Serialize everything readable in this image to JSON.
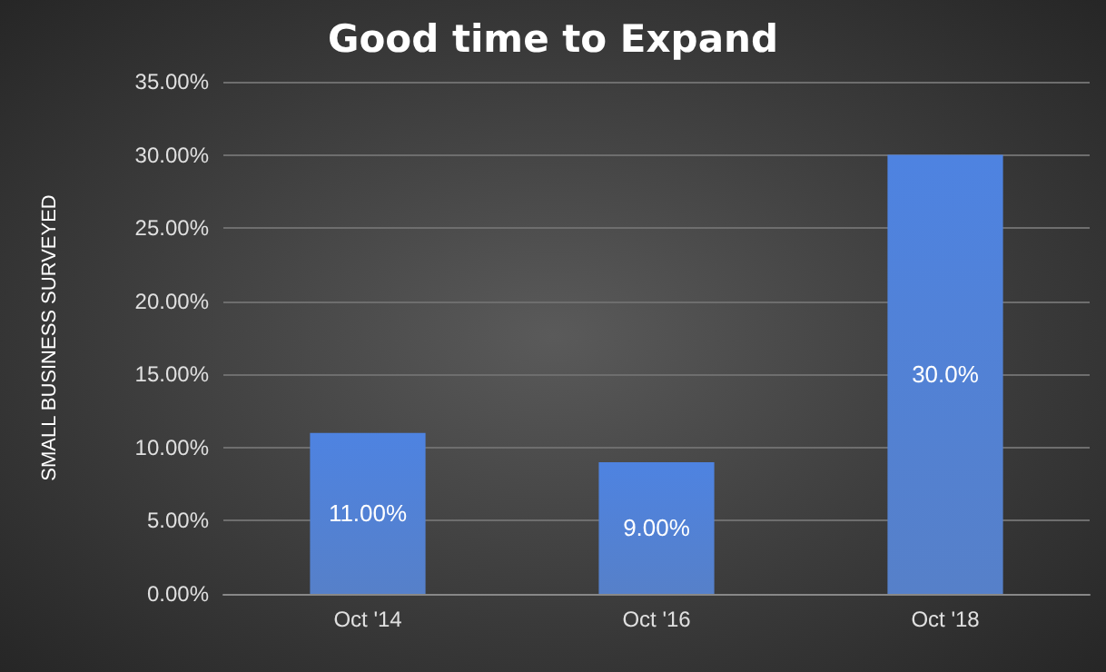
{
  "chart_data": {
    "type": "bar",
    "title": "Good time to Expand",
    "ylabel": "SMALL BUSINESS SURVEYED",
    "categories": [
      "Oct '14",
      "Oct '16",
      "Oct '18"
    ],
    "values": [
      11,
      9,
      30
    ],
    "value_labels": [
      "11.00%",
      "9.00%",
      "30.0%"
    ],
    "color": "#4472c4",
    "ylim": [
      0,
      35
    ],
    "yticks": [
      {
        "value": 0,
        "label": "0.00%"
      },
      {
        "value": 5,
        "label": "5.00%"
      },
      {
        "value": 10,
        "label": "10.00%"
      },
      {
        "value": 15,
        "label": "15.00%"
      },
      {
        "value": 20,
        "label": "20.00%"
      },
      {
        "value": 25,
        "label": "25.00%"
      },
      {
        "value": 30,
        "label": "30.00%"
      },
      {
        "value": 35,
        "label": "35.00%"
      }
    ],
    "grid": "y"
  }
}
